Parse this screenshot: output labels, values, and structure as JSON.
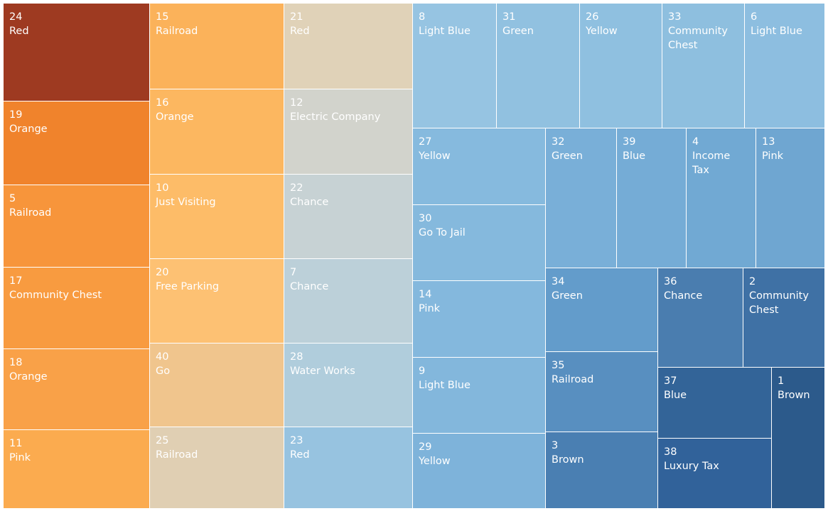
{
  "chart_data": {
    "type": "treemap",
    "tiles": [
      {
        "number": "24",
        "label": "Red",
        "color": "#9e3a21",
        "text_color": "#ffffff"
      },
      {
        "number": "19",
        "label": "Orange",
        "color": "#f0832c",
        "text_color": "#ffffff"
      },
      {
        "number": "5",
        "label": "Railroad",
        "color": "#f7953b",
        "text_color": "#ffffff"
      },
      {
        "number": "17",
        "label": "Community Chest",
        "color": "#f89b40",
        "text_color": "#ffffff"
      },
      {
        "number": "18",
        "label": "Orange",
        "color": "#f9a148",
        "text_color": "#ffffff"
      },
      {
        "number": "11",
        "label": "Pink",
        "color": "#fbab4f",
        "text_color": "#ffffff"
      },
      {
        "number": "15",
        "label": "Railroad",
        "color": "#fbb25a",
        "text_color": "#ffffff"
      },
      {
        "number": "16",
        "label": "Orange",
        "color": "#fcb760",
        "text_color": "#ffffff"
      },
      {
        "number": "10",
        "label": "Just Visiting",
        "color": "#fdbc68",
        "text_color": "#ffffff"
      },
      {
        "number": "20",
        "label": "Free Parking",
        "color": "#fdc173",
        "text_color": "#ffffff"
      },
      {
        "number": "40",
        "label": "Go",
        "color": "#f0c58d",
        "text_color": "#ffffff"
      },
      {
        "number": "25",
        "label": "Railroad",
        "color": "#e0cfb3",
        "text_color": "#ffffff"
      },
      {
        "number": "21",
        "label": "Red",
        "color": "#e0d2b8",
        "text_color": "#ffffff"
      },
      {
        "number": "12",
        "label": "Electric Company",
        "color": "#d2d3cc",
        "text_color": "#ffffff"
      },
      {
        "number": "22",
        "label": "Chance",
        "color": "#c7d2d4",
        "text_color": "#ffffff"
      },
      {
        "number": "7",
        "label": "Chance",
        "color": "#bcd0d9",
        "text_color": "#ffffff"
      },
      {
        "number": "28",
        "label": "Water Works",
        "color": "#b0cddc",
        "text_color": "#ffffff"
      },
      {
        "number": "23",
        "label": "Red",
        "color": "#97c3e0",
        "text_color": "#ffffff"
      },
      {
        "number": "8",
        "label": "Light Blue",
        "color": "#96c4e2",
        "text_color": "#ffffff"
      },
      {
        "number": "31",
        "label": "Green",
        "color": "#91c1e0",
        "text_color": "#ffffff"
      },
      {
        "number": "26",
        "label": "Yellow",
        "color": "#8fc0e0",
        "text_color": "#ffffff"
      },
      {
        "number": "33",
        "label": "Community Chest",
        "color": "#8ebfdf",
        "text_color": "#ffffff"
      },
      {
        "number": "6",
        "label": "Light Blue",
        "color": "#8dbee0",
        "text_color": "#ffffff"
      },
      {
        "number": "27",
        "label": "Yellow",
        "color": "#86bade",
        "text_color": "#ffffff"
      },
      {
        "number": "30",
        "label": "Go To Jail",
        "color": "#85b9dd",
        "text_color": "#ffffff"
      },
      {
        "number": "14",
        "label": "Pink",
        "color": "#84b8dd",
        "text_color": "#ffffff"
      },
      {
        "number": "9",
        "label": "Light Blue",
        "color": "#83b7dc",
        "text_color": "#ffffff"
      },
      {
        "number": "29",
        "label": "Yellow",
        "color": "#7eb3da",
        "text_color": "#ffffff"
      },
      {
        "number": "32",
        "label": "Green",
        "color": "#79afd8",
        "text_color": "#ffffff"
      },
      {
        "number": "39",
        "label": "Blue",
        "color": "#75acd6",
        "text_color": "#ffffff"
      },
      {
        "number": "4",
        "label": "Income Tax",
        "color": "#71a9d3",
        "text_color": "#ffffff"
      },
      {
        "number": "13",
        "label": "Pink",
        "color": "#6fa6d1",
        "text_color": "#ffffff"
      },
      {
        "number": "34",
        "label": "Green",
        "color": "#639ccb",
        "text_color": "#ffffff"
      },
      {
        "number": "35",
        "label": "Railroad",
        "color": "#588fc0",
        "text_color": "#ffffff"
      },
      {
        "number": "3",
        "label": "Brown",
        "color": "#4a7fb2",
        "text_color": "#ffffff"
      },
      {
        "number": "36",
        "label": "Chance",
        "color": "#4a7daf",
        "text_color": "#ffffff"
      },
      {
        "number": "2",
        "label": "Community Chest",
        "color": "#3f71a5",
        "text_color": "#ffffff"
      },
      {
        "number": "37",
        "label": "Blue",
        "color": "#336498",
        "text_color": "#ffffff"
      },
      {
        "number": "38",
        "label": "Luxury Tax",
        "color": "#31629a",
        "text_color": "#ffffff"
      },
      {
        "number": "1",
        "label": "Brown",
        "color": "#2c5a8b",
        "text_color": "#ffffff"
      }
    ]
  }
}
